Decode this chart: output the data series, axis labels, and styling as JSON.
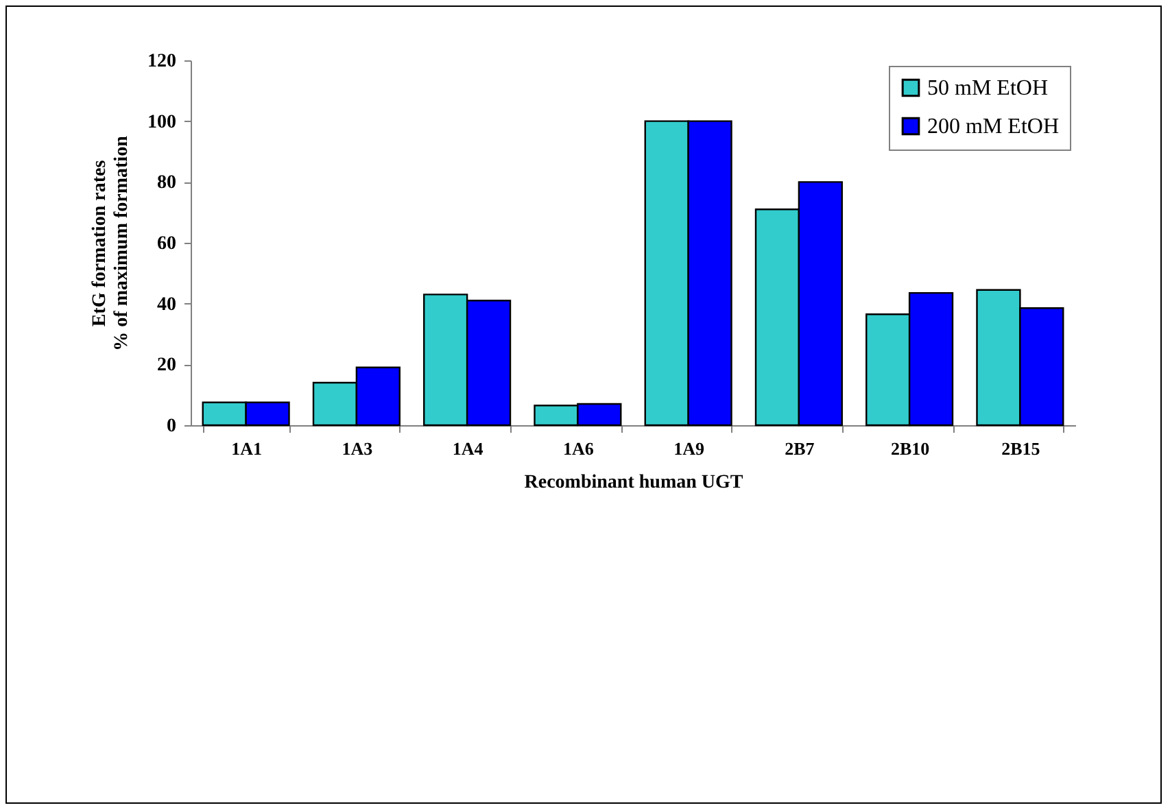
{
  "chart_data": {
    "type": "bar",
    "xlabel": "Recombinant human UGT",
    "ylabel": "EtG formation rates\n% of maximum formation",
    "categories": [
      "1A1",
      "1A3",
      "1A4",
      "1A6",
      "1A9",
      "2B7",
      "2B10",
      "2B15"
    ],
    "series": [
      {
        "name": "50 mM EtOH",
        "color": "#33cccc",
        "values": [
          7.5,
          14,
          43,
          6.5,
          100,
          71,
          36.5,
          44.5
        ]
      },
      {
        "name": "200 mM EtOH",
        "color": "#0000ff",
        "values": [
          7.5,
          19,
          41,
          7,
          100,
          80,
          43.5,
          38.5
        ]
      }
    ],
    "ylim": [
      0,
      120
    ],
    "yticks": [
      0,
      20,
      40,
      60,
      80,
      100,
      120
    ],
    "grid": false,
    "legend": "top right"
  }
}
